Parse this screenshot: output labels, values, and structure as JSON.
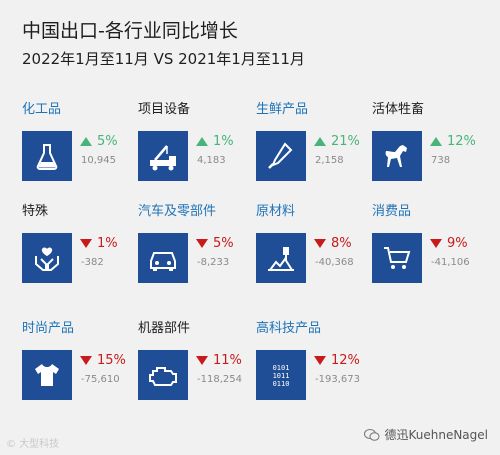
{
  "header": {
    "title": "中国出口-各行业同比增长",
    "subtitle": "2022年1月至11月 VS 2021年1月至11月"
  },
  "colors": {
    "up": "#48b47a",
    "down": "#c81a1a",
    "tile": "#1f4e96",
    "label_blue": "#1f73b7"
  },
  "chart_data": {
    "type": "table",
    "title": "中国出口-各行业同比增长",
    "subtitle": "2022年1月至11月 VS 2021年1月至11月",
    "categories": [
      {
        "label": "化工品",
        "label_color": "blue",
        "icon": "flask-icon",
        "direction": "up",
        "change_pct": "5%",
        "change_abs": "10,945"
      },
      {
        "label": "项目设备",
        "label_color": "dark",
        "icon": "crane-truck-icon",
        "direction": "up",
        "change_pct": "1%",
        "change_abs": "4,183"
      },
      {
        "label": "生鲜产品",
        "label_color": "blue",
        "icon": "thermometer-icon",
        "direction": "up",
        "change_pct": "21%",
        "change_abs": "2,158"
      },
      {
        "label": "活体牲畜",
        "label_color": "dark",
        "icon": "horse-icon",
        "direction": "up",
        "change_pct": "12%",
        "change_abs": "738"
      },
      {
        "label": "特殊",
        "label_color": "dark",
        "icon": "hands-care-icon",
        "direction": "down",
        "change_pct": "1%",
        "change_abs": "-382"
      },
      {
        "label": "汽车及零部件",
        "label_color": "blue",
        "icon": "car-icon",
        "direction": "down",
        "change_pct": "5%",
        "change_abs": "-8,233"
      },
      {
        "label": "原材料",
        "label_color": "blue",
        "icon": "raw-material-icon",
        "direction": "down",
        "change_pct": "8%",
        "change_abs": "-40,368"
      },
      {
        "label": "消费品",
        "label_color": "blue",
        "icon": "shopping-cart-icon",
        "direction": "down",
        "change_pct": "9%",
        "change_abs": "-41,106"
      },
      {
        "label": "时尚产品",
        "label_color": "blue",
        "icon": "tshirt-icon",
        "direction": "down",
        "change_pct": "15%",
        "change_abs": "-75,610"
      },
      {
        "label": "机器部件",
        "label_color": "dark",
        "icon": "engine-icon",
        "direction": "down",
        "change_pct": "11%",
        "change_abs": "-118,254"
      },
      {
        "label": "高科技产品",
        "label_color": "blue",
        "icon": "binary-icon",
        "direction": "down",
        "change_pct": "12%",
        "change_abs": "-193,673"
      }
    ]
  },
  "watermarks": {
    "left": "© 大型科技",
    "right": "德迅KuehneNagel"
  }
}
